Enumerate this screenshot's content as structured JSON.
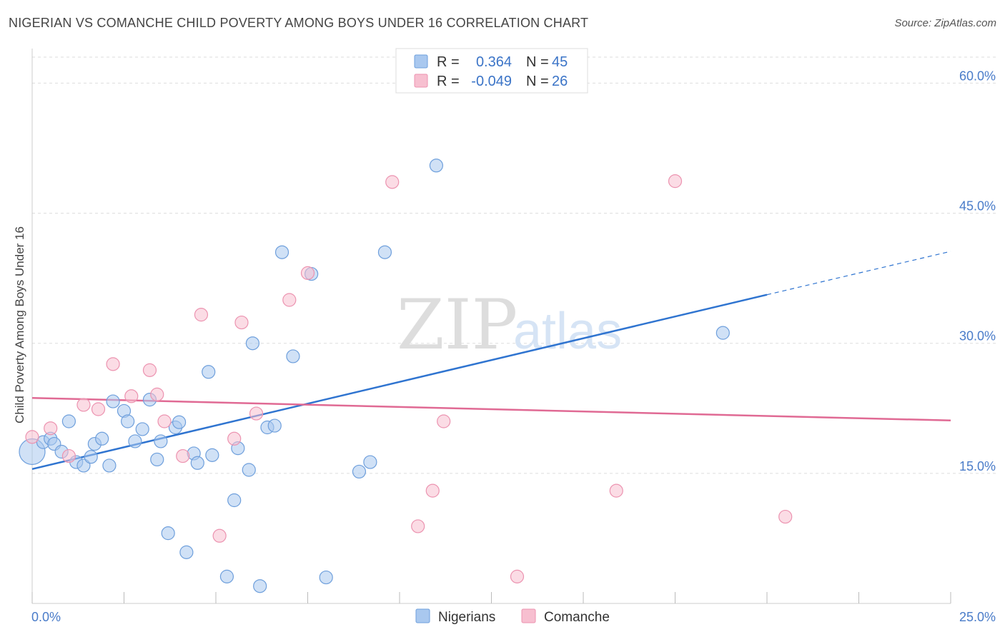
{
  "title": "NIGERIAN VS COMANCHE CHILD POVERTY AMONG BOYS UNDER 16 CORRELATION CHART",
  "source": "Source: ZipAtlas.com",
  "watermark": {
    "zip": "ZIP",
    "atlas": "atlas"
  },
  "colors": {
    "nigerians_fill": "#a9c8ef",
    "nigerians_stroke": "#6e9fdc",
    "nigerians_line": "#2f74d0",
    "comanche_fill": "#f7bfd0",
    "comanche_stroke": "#ec93b0",
    "comanche_line": "#e06a94",
    "grid": "#dddddd",
    "axis_text": "#4a7cc9"
  },
  "legend": {
    "rows": [
      {
        "r_label": "R =",
        "r_value": "0.364",
        "n_label": "N =",
        "n_value": "45"
      },
      {
        "r_label": "R =",
        "r_value": "-0.049",
        "n_label": "N =",
        "n_value": "26"
      }
    ]
  },
  "chart_data": {
    "type": "scatter",
    "title": "NIGERIAN VS COMANCHE CHILD POVERTY AMONG BOYS UNDER 16 CORRELATION CHART",
    "xlabel": "",
    "ylabel": "Child Poverty Among Boys Under 16",
    "xlim": [
      0,
      25
    ],
    "ylim": [
      0,
      63
    ],
    "x_tick_labels": [
      "0.0%",
      "25.0%"
    ],
    "y_ticks": [
      15,
      30,
      45,
      60
    ],
    "y_tick_labels": [
      "15.0%",
      "30.0%",
      "45.0%",
      "60.0%"
    ],
    "grid": true,
    "legend_position": "top-center",
    "series": [
      {
        "name": "Nigerians",
        "r": 0.364,
        "n": 45,
        "trend": {
          "x0": 0,
          "y0": 15.5,
          "x1": 20,
          "y1": 35.6,
          "dash_to_x": 25,
          "dash_to_y": 40.6
        },
        "points": [
          [
            0.0,
            17.5
          ],
          [
            0.3,
            18.6
          ],
          [
            0.5,
            19.0
          ],
          [
            0.6,
            18.4
          ],
          [
            0.8,
            17.5
          ],
          [
            1.0,
            21.0
          ],
          [
            1.2,
            16.3
          ],
          [
            1.4,
            15.9
          ],
          [
            1.6,
            16.9
          ],
          [
            1.7,
            18.4
          ],
          [
            1.9,
            19.0
          ],
          [
            2.1,
            15.9
          ],
          [
            2.2,
            23.3
          ],
          [
            2.5,
            22.2
          ],
          [
            2.6,
            21.0
          ],
          [
            2.8,
            18.7
          ],
          [
            3.0,
            20.1
          ],
          [
            3.2,
            23.5
          ],
          [
            3.4,
            16.6
          ],
          [
            3.5,
            18.7
          ],
          [
            3.9,
            20.3
          ],
          [
            4.0,
            20.9
          ],
          [
            3.7,
            8.1
          ],
          [
            4.2,
            5.9
          ],
          [
            4.4,
            17.3
          ],
          [
            4.5,
            16.2
          ],
          [
            4.8,
            26.7
          ],
          [
            4.9,
            17.1
          ],
          [
            5.3,
            3.1
          ],
          [
            5.5,
            11.9
          ],
          [
            5.6,
            17.9
          ],
          [
            5.9,
            15.4
          ],
          [
            6.0,
            30.0
          ],
          [
            6.2,
            2.0
          ],
          [
            6.4,
            20.3
          ],
          [
            6.6,
            20.5
          ],
          [
            6.8,
            40.5
          ],
          [
            7.1,
            28.5
          ],
          [
            7.6,
            38.0
          ],
          [
            8.0,
            3.0
          ],
          [
            8.9,
            15.2
          ],
          [
            9.2,
            16.3
          ],
          [
            9.6,
            40.5
          ],
          [
            11.0,
            50.5
          ],
          [
            18.8,
            31.2
          ]
        ]
      },
      {
        "name": "Comanche",
        "r": -0.049,
        "n": 26,
        "trend": {
          "x0": 0,
          "y0": 23.7,
          "x1": 25,
          "y1": 21.1
        },
        "points": [
          [
            0.0,
            19.2
          ],
          [
            0.5,
            20.2
          ],
          [
            1.0,
            17.0
          ],
          [
            1.4,
            22.9
          ],
          [
            1.8,
            22.4
          ],
          [
            2.2,
            27.6
          ],
          [
            2.7,
            23.9
          ],
          [
            3.2,
            26.9
          ],
          [
            3.4,
            24.1
          ],
          [
            3.6,
            21.0
          ],
          [
            4.1,
            17.0
          ],
          [
            4.6,
            33.3
          ],
          [
            5.1,
            7.8
          ],
          [
            5.5,
            19.0
          ],
          [
            5.7,
            32.4
          ],
          [
            6.1,
            21.9
          ],
          [
            7.0,
            35.0
          ],
          [
            7.5,
            38.1
          ],
          [
            9.8,
            48.6
          ],
          [
            10.5,
            8.9
          ],
          [
            10.9,
            13.0
          ],
          [
            11.2,
            21.0
          ],
          [
            13.2,
            3.1
          ],
          [
            15.9,
            13.0
          ],
          [
            17.5,
            48.7
          ],
          [
            20.5,
            10.0
          ]
        ]
      }
    ]
  }
}
